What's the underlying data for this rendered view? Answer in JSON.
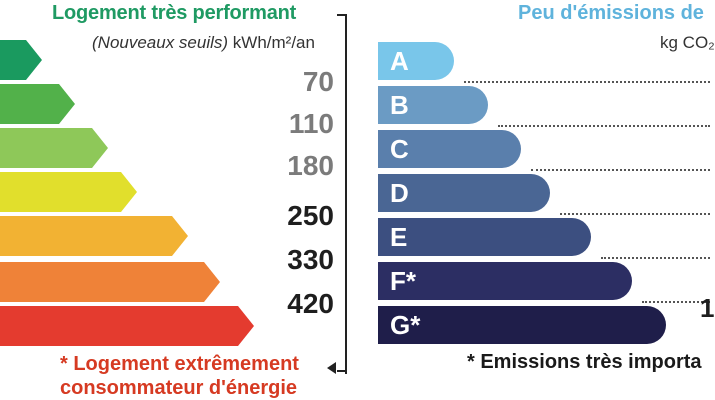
{
  "left": {
    "title": "Logement très performant",
    "subtitle_italic": "(Nouveaux seuils)",
    "subtitle_unit": " kWh/m²/an",
    "values": [
      "70",
      "110",
      "180",
      "250",
      "330",
      "420"
    ],
    "colors": [
      "#1a9a5f",
      "#52b14a",
      "#8ec859",
      "#e1df2c",
      "#f2b233",
      "#ef8238",
      "#e43b2f"
    ],
    "footnote_line1": "* Logement extrêmement",
    "footnote_line2": "consommateur d'énergie"
  },
  "right": {
    "title": "Peu d'émissions de",
    "unit": "kg CO₂",
    "letters": [
      "A",
      "B",
      "C",
      "D",
      "E",
      "F*",
      "G*"
    ],
    "colors": [
      "#79c6ea",
      "#6b9bc4",
      "#5a7fac",
      "#4a6694",
      "#3c4f80",
      "#2c2e63",
      "#1f1e4a"
    ],
    "value": "1",
    "footnote": "* Emissions très importa"
  }
}
